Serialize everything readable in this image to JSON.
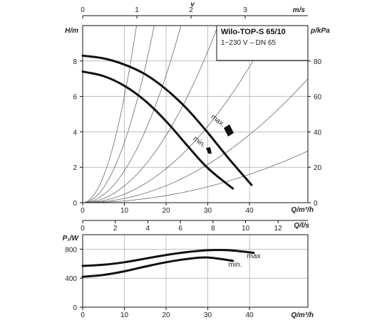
{
  "chart_data": [
    {
      "type": "line",
      "title": "Wilo-TOP-S 65/10",
      "subtitle": "1~230 V – DN 65",
      "xlabel": "Q/m³/h",
      "ylabel": "H/m",
      "y2label": "p/kPa",
      "top_axis_label": "v",
      "top_axis_unit": "m/s",
      "bottom_axis2_label": "Q/l/s",
      "xlim": [
        0,
        54
      ],
      "ylim": [
        0,
        10
      ],
      "y2lim": [
        0,
        100
      ],
      "x_ticks": [
        0,
        10,
        20,
        30,
        40
      ],
      "y_ticks": [
        0,
        2,
        4,
        6,
        8
      ],
      "y2_ticks": [
        0,
        20,
        40,
        60,
        80
      ],
      "top_ticks": [
        0,
        1,
        2,
        3
      ],
      "ls_ticks": [
        0,
        2,
        4,
        6,
        8,
        10,
        12
      ],
      "grid": true,
      "series": [
        {
          "name": "max.",
          "x": [
            0,
            5,
            10,
            15,
            20,
            25,
            30,
            35,
            40.5
          ],
          "y": [
            8.3,
            8.15,
            7.8,
            7.25,
            6.4,
            5.3,
            3.95,
            2.5,
            1.0
          ]
        },
        {
          "name": "min.",
          "x": [
            0,
            5,
            10,
            15,
            20,
            25,
            30,
            36
          ],
          "y": [
            7.4,
            7.15,
            6.6,
            5.75,
            4.6,
            3.25,
            1.95,
            0.8
          ]
        }
      ],
      "system_curves_k": [
        0.06,
        0.034,
        0.018,
        0.0095,
        0.0048,
        0.0024,
        0.001
      ],
      "annotations": [
        "max.",
        "min."
      ]
    },
    {
      "type": "line",
      "xlabel": "Q/m³/h",
      "ylabel": "P₁/W",
      "xlim": [
        0,
        54
      ],
      "ylim": [
        0,
        1000
      ],
      "x_ticks": [
        0,
        10,
        20,
        30,
        40
      ],
      "y_ticks": [
        0,
        400,
        800
      ],
      "grid": true,
      "series": [
        {
          "name": "max",
          "x": [
            0,
            5,
            10,
            15,
            20,
            25,
            30,
            35,
            41
          ],
          "y": [
            570,
            585,
            620,
            670,
            720,
            760,
            785,
            785,
            750
          ]
        },
        {
          "name": "min.",
          "x": [
            0,
            5,
            10,
            15,
            20,
            25,
            30,
            36
          ],
          "y": [
            420,
            445,
            495,
            560,
            620,
            665,
            685,
            640
          ]
        }
      ]
    }
  ]
}
